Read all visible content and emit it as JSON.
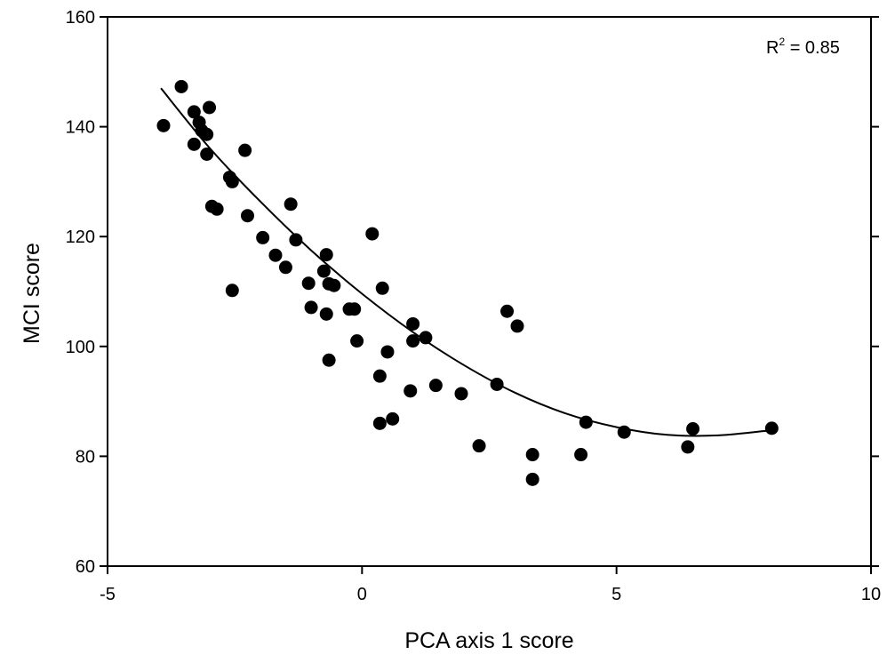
{
  "chart_data": {
    "type": "scatter",
    "xlabel": "PCA axis 1 score",
    "ylabel": "MCI score",
    "xlim": [
      -5,
      10
    ],
    "ylim": [
      60,
      160
    ],
    "xticks": [
      -5,
      0,
      5,
      10
    ],
    "yticks": [
      60,
      80,
      100,
      120,
      140,
      160
    ],
    "grid": false,
    "annotation": {
      "base": "R",
      "sup": "2",
      "rest": " = 0.85",
      "position": "top-right"
    },
    "points": [
      {
        "x": -3.9,
        "y": 140.2
      },
      {
        "x": -3.55,
        "y": 147.3
      },
      {
        "x": -3.3,
        "y": 142.7
      },
      {
        "x": -3.3,
        "y": 136.8
      },
      {
        "x": -3.2,
        "y": 140.8
      },
      {
        "x": -3.15,
        "y": 139.3
      },
      {
        "x": -3.05,
        "y": 138.6
      },
      {
        "x": -3.05,
        "y": 135.0
      },
      {
        "x": -3.0,
        "y": 143.5
      },
      {
        "x": -2.95,
        "y": 125.5
      },
      {
        "x": -2.85,
        "y": 125.0
      },
      {
        "x": -2.6,
        "y": 130.8
      },
      {
        "x": -2.55,
        "y": 130.0
      },
      {
        "x": -2.55,
        "y": 110.2
      },
      {
        "x": -2.3,
        "y": 135.7
      },
      {
        "x": -2.25,
        "y": 123.8
      },
      {
        "x": -1.95,
        "y": 119.8
      },
      {
        "x": -1.7,
        "y": 116.6
      },
      {
        "x": -1.5,
        "y": 114.4
      },
      {
        "x": -1.4,
        "y": 125.9
      },
      {
        "x": -1.3,
        "y": 119.4
      },
      {
        "x": -1.05,
        "y": 111.5
      },
      {
        "x": -1.0,
        "y": 107.1
      },
      {
        "x": -0.75,
        "y": 113.7
      },
      {
        "x": -0.7,
        "y": 116.7
      },
      {
        "x": -0.7,
        "y": 105.9
      },
      {
        "x": -0.65,
        "y": 111.4
      },
      {
        "x": -0.65,
        "y": 97.5
      },
      {
        "x": -0.55,
        "y": 111.1
      },
      {
        "x": -0.25,
        "y": 106.8
      },
      {
        "x": -0.15,
        "y": 106.8
      },
      {
        "x": -0.1,
        "y": 101.0
      },
      {
        "x": 0.2,
        "y": 120.5
      },
      {
        "x": 0.35,
        "y": 94.6
      },
      {
        "x": 0.4,
        "y": 110.6
      },
      {
        "x": 0.35,
        "y": 86.0
      },
      {
        "x": 0.5,
        "y": 99.0
      },
      {
        "x": 0.6,
        "y": 86.8
      },
      {
        "x": 0.95,
        "y": 91.9
      },
      {
        "x": 1.0,
        "y": 104.1
      },
      {
        "x": 1.0,
        "y": 101.0
      },
      {
        "x": 1.25,
        "y": 101.6
      },
      {
        "x": 1.45,
        "y": 92.9
      },
      {
        "x": 1.95,
        "y": 91.4
      },
      {
        "x": 2.3,
        "y": 81.9
      },
      {
        "x": 2.65,
        "y": 93.1
      },
      {
        "x": 2.85,
        "y": 106.4
      },
      {
        "x": 3.05,
        "y": 103.7
      },
      {
        "x": 3.35,
        "y": 80.3
      },
      {
        "x": 3.35,
        "y": 75.8
      },
      {
        "x": 4.3,
        "y": 80.3
      },
      {
        "x": 4.4,
        "y": 86.2
      },
      {
        "x": 5.15,
        "y": 84.4
      },
      {
        "x": 6.4,
        "y": 81.7
      },
      {
        "x": 6.5,
        "y": 85.0
      },
      {
        "x": 8.05,
        "y": 85.1
      }
    ],
    "fit_line": {
      "type": "quadratic",
      "x_range": [
        -3.95,
        8.0
      ],
      "points": [
        {
          "x": -3.95,
          "y": 147.0
        },
        {
          "x": -3.0,
          "y": 136.2
        },
        {
          "x": -2.0,
          "y": 126.4
        },
        {
          "x": -1.0,
          "y": 117.5
        },
        {
          "x": 0.0,
          "y": 109.6
        },
        {
          "x": 1.0,
          "y": 102.6
        },
        {
          "x": 2.0,
          "y": 96.6
        },
        {
          "x": 3.0,
          "y": 91.6
        },
        {
          "x": 4.0,
          "y": 87.8
        },
        {
          "x": 5.0,
          "y": 85.3
        },
        {
          "x": 6.0,
          "y": 83.9
        },
        {
          "x": 7.0,
          "y": 83.8
        },
        {
          "x": 8.0,
          "y": 84.7
        }
      ]
    }
  }
}
